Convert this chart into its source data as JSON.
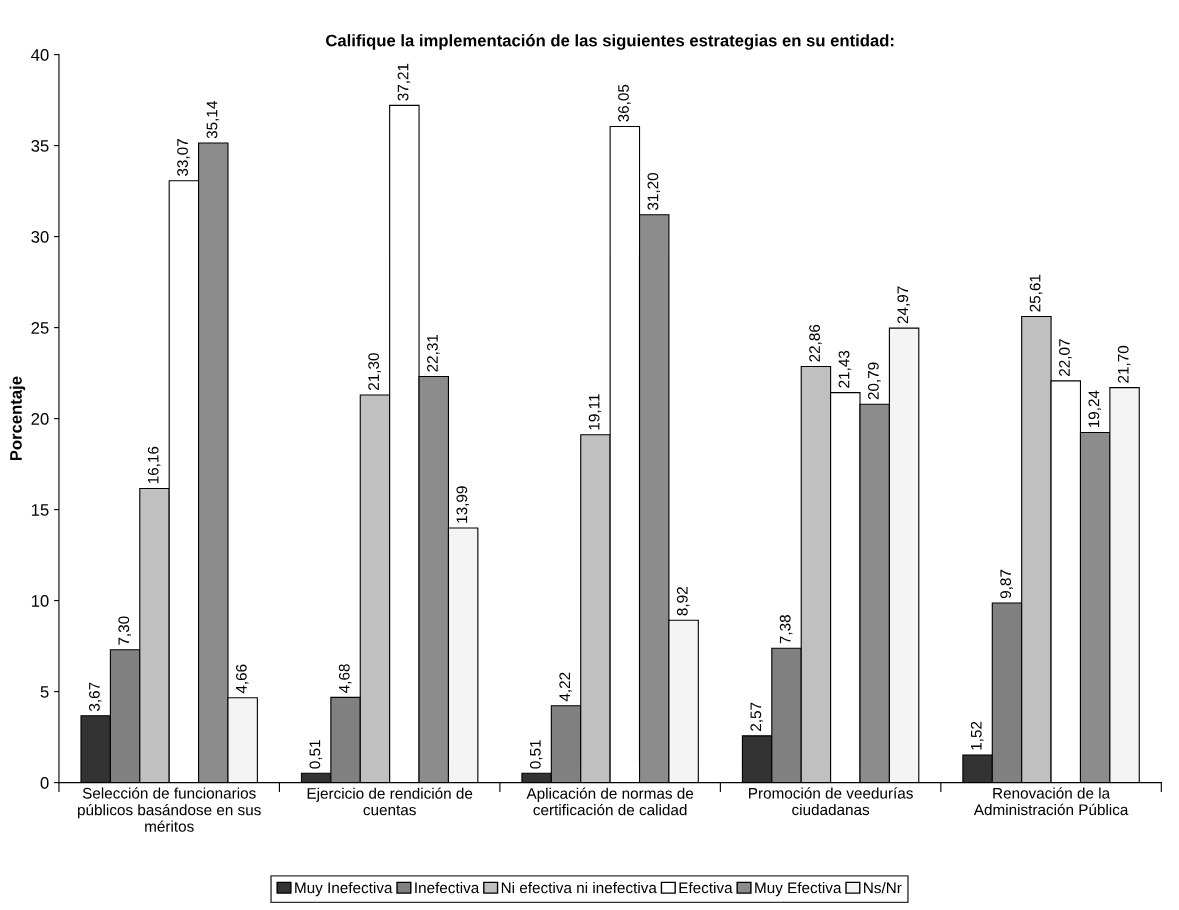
{
  "chart_data": {
    "type": "bar",
    "title": "Califique la implementación de las siguientes estrategias en su entidad:",
    "ylabel": "Porcentaje",
    "categories": [
      "Selección de funcionarios públicos basándose en sus méritos",
      "Ejercicio de rendición de cuentas",
      "Aplicación de normas de certificación de calidad",
      "Promoción de veedurías ciudadanas",
      "Renovación de la Administración Pública"
    ],
    "series": [
      {
        "name": "Muy Inefectiva",
        "color": "#333333",
        "values": [
          3.67,
          0.51,
          0.51,
          2.57,
          1.52
        ],
        "value_labels": [
          "3,67",
          "0,51",
          "0,51",
          "2,57",
          "1,52"
        ]
      },
      {
        "name": "Inefectiva",
        "color": "#808080",
        "values": [
          7.3,
          4.68,
          4.22,
          7.38,
          9.87
        ],
        "value_labels": [
          "7,30",
          "4,68",
          "4,22",
          "7,38",
          "9,87"
        ]
      },
      {
        "name": "Ni efectiva ni inefectiva",
        "color": "#c0c0c0",
        "values": [
          16.16,
          21.3,
          19.11,
          22.86,
          25.61
        ],
        "value_labels": [
          "16,16",
          "21,30",
          "19,11",
          "22,86",
          "25,61"
        ]
      },
      {
        "name": "Efectiva",
        "color": "#ffffff",
        "values": [
          33.07,
          37.21,
          36.05,
          21.43,
          22.07
        ],
        "value_labels": [
          "33,07",
          "37,21",
          "36,05",
          "21,43",
          "22,07"
        ]
      },
      {
        "name": "Muy Efectiva",
        "color": "#8c8c8c",
        "values": [
          35.14,
          22.31,
          31.2,
          20.79,
          19.24
        ],
        "value_labels": [
          "35,14",
          "22,31",
          "31,20",
          "20,79",
          "19,24"
        ]
      },
      {
        "name": "Ns/Nr",
        "color": "#f4f4f4",
        "values": [
          4.66,
          13.99,
          8.92,
          24.97,
          21.7
        ],
        "value_labels": [
          "4,66",
          "13,99",
          "8,92",
          "24,97",
          "21,70"
        ]
      }
    ],
    "ylim": [
      0,
      40
    ],
    "yticks": [
      0,
      5,
      10,
      15,
      20,
      25,
      30,
      35,
      40
    ],
    "grid": false,
    "legend": "bottom"
  }
}
